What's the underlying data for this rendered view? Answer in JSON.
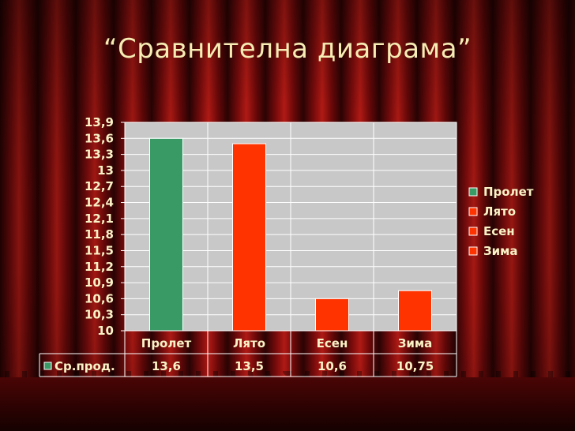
{
  "title": "“Сравнителна диаграма”",
  "chart_data": {
    "type": "bar",
    "categories": [
      "Пролет",
      "Лято",
      "Есен",
      "Зима"
    ],
    "series": [
      {
        "name": "Ср.прод.",
        "values": [
          13.6,
          13.5,
          10.6,
          10.75
        ]
      }
    ],
    "value_labels": [
      "13,6",
      "13,5",
      "10,6",
      "10,75"
    ],
    "ylim": [
      10,
      13.9
    ],
    "y_ticks": [
      10,
      10.3,
      10.6,
      10.9,
      11.2,
      11.5,
      11.8,
      12.1,
      12.4,
      12.7,
      13,
      13.3,
      13.6,
      13.9
    ],
    "y_tick_labels": [
      "10",
      "10,3",
      "10,6",
      "10,9",
      "11,2",
      "11,5",
      "11,8",
      "12,1",
      "12,4",
      "12,7",
      "13",
      "13,3",
      "13,6",
      "13,9"
    ],
    "grid": true,
    "legend": {
      "position": "right",
      "entries": [
        "Пролет",
        "Лято",
        "Есен",
        "Зима"
      ]
    },
    "bar_colors": [
      "#3a9a66",
      "#ff3300",
      "#ff3300",
      "#ff3300"
    ],
    "plot_background": "#c8c8c8",
    "data_table": true
  }
}
